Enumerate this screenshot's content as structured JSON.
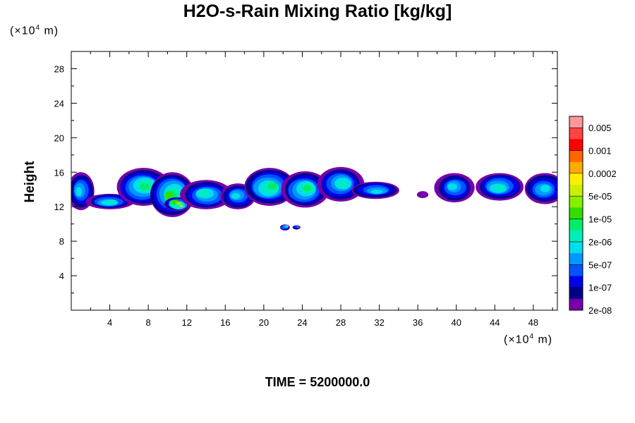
{
  "title": "H2O-s-Rain Mixing Ratio [kg/kg]",
  "time_label": "TIME = 5200000.0",
  "y_unit": {
    "base": "(×10",
    "exp": "4",
    "tail": " m)"
  },
  "x_unit": {
    "base": "(×10",
    "exp": "4",
    "tail": " m)"
  },
  "chart_data": {
    "type": "heatmap",
    "title": "H2O-s-Rain Mixing Ratio [kg/kg]",
    "ylabel": "Height",
    "xlabel": "",
    "xlim": [
      0,
      50.5
    ],
    "ylim": [
      0,
      30
    ],
    "x_ticks": [
      4,
      8,
      12,
      16,
      20,
      24,
      28,
      32,
      36,
      40,
      44,
      48
    ],
    "x_tick_labels": [
      "4",
      "8",
      "12",
      "16",
      "20",
      "24",
      "28",
      "32",
      "36",
      "40",
      "44",
      "48"
    ],
    "y_ticks": [
      4,
      8,
      12,
      16,
      20,
      24,
      28
    ],
    "y_tick_labels": [
      "4",
      "8",
      "12",
      "16",
      "20",
      "24",
      "28"
    ],
    "colorbar": {
      "labels": [
        "0.005",
        "0.001",
        "0.0002",
        "5e-05",
        "1e-05",
        "2e-06",
        "5e-07",
        "1e-07",
        "2e-08"
      ],
      "colors": [
        "#ff9999",
        "#ff4444",
        "#ff0000",
        "#ff6600",
        "#ffaa00",
        "#ffee00",
        "#ccee00",
        "#88ee00",
        "#33dd00",
        "#00ee66",
        "#00eebb",
        "#00ddee",
        "#0099ff",
        "#0055ff",
        "#0000ee",
        "#00008b",
        "#7700aa"
      ]
    },
    "cloud_cells": [
      {
        "x": 1.0,
        "y": 13.8,
        "rx": 1.4,
        "ry": 2.2,
        "level": 11
      },
      {
        "x": 4.0,
        "y": 12.6,
        "rx": 2.4,
        "ry": 0.9,
        "level": 10
      },
      {
        "x": 7.5,
        "y": 14.3,
        "rx": 2.8,
        "ry": 2.2,
        "level": 9
      },
      {
        "x": 10.5,
        "y": 13.4,
        "rx": 2.4,
        "ry": 2.6,
        "level": 8
      },
      {
        "x": 11.0,
        "y": 12.3,
        "rx": 1.3,
        "ry": 0.8,
        "level": 6
      },
      {
        "x": 14.0,
        "y": 13.4,
        "rx": 2.6,
        "ry": 1.7,
        "level": 10
      },
      {
        "x": 17.3,
        "y": 13.2,
        "rx": 1.9,
        "ry": 1.5,
        "level": 11
      },
      {
        "x": 20.6,
        "y": 14.3,
        "rx": 2.7,
        "ry": 2.2,
        "level": 9
      },
      {
        "x": 24.3,
        "y": 14.0,
        "rx": 2.4,
        "ry": 2.1,
        "level": 9
      },
      {
        "x": 28.0,
        "y": 14.6,
        "rx": 2.4,
        "ry": 2.0,
        "level": 10
      },
      {
        "x": 31.6,
        "y": 13.9,
        "rx": 2.6,
        "ry": 1.0,
        "level": 11
      },
      {
        "x": 36.5,
        "y": 13.4,
        "rx": 0.6,
        "ry": 0.4,
        "level": 16
      },
      {
        "x": 39.8,
        "y": 14.2,
        "rx": 2.0,
        "ry": 1.7,
        "level": 11
      },
      {
        "x": 44.5,
        "y": 14.3,
        "rx": 2.5,
        "ry": 1.6,
        "level": 10
      },
      {
        "x": 49.2,
        "y": 14.1,
        "rx": 2.2,
        "ry": 1.8,
        "level": 11
      },
      {
        "x": 22.2,
        "y": 9.6,
        "rx": 0.5,
        "ry": 0.35,
        "level": 10
      },
      {
        "x": 23.4,
        "y": 9.6,
        "rx": 0.4,
        "ry": 0.25,
        "level": 12
      }
    ]
  }
}
